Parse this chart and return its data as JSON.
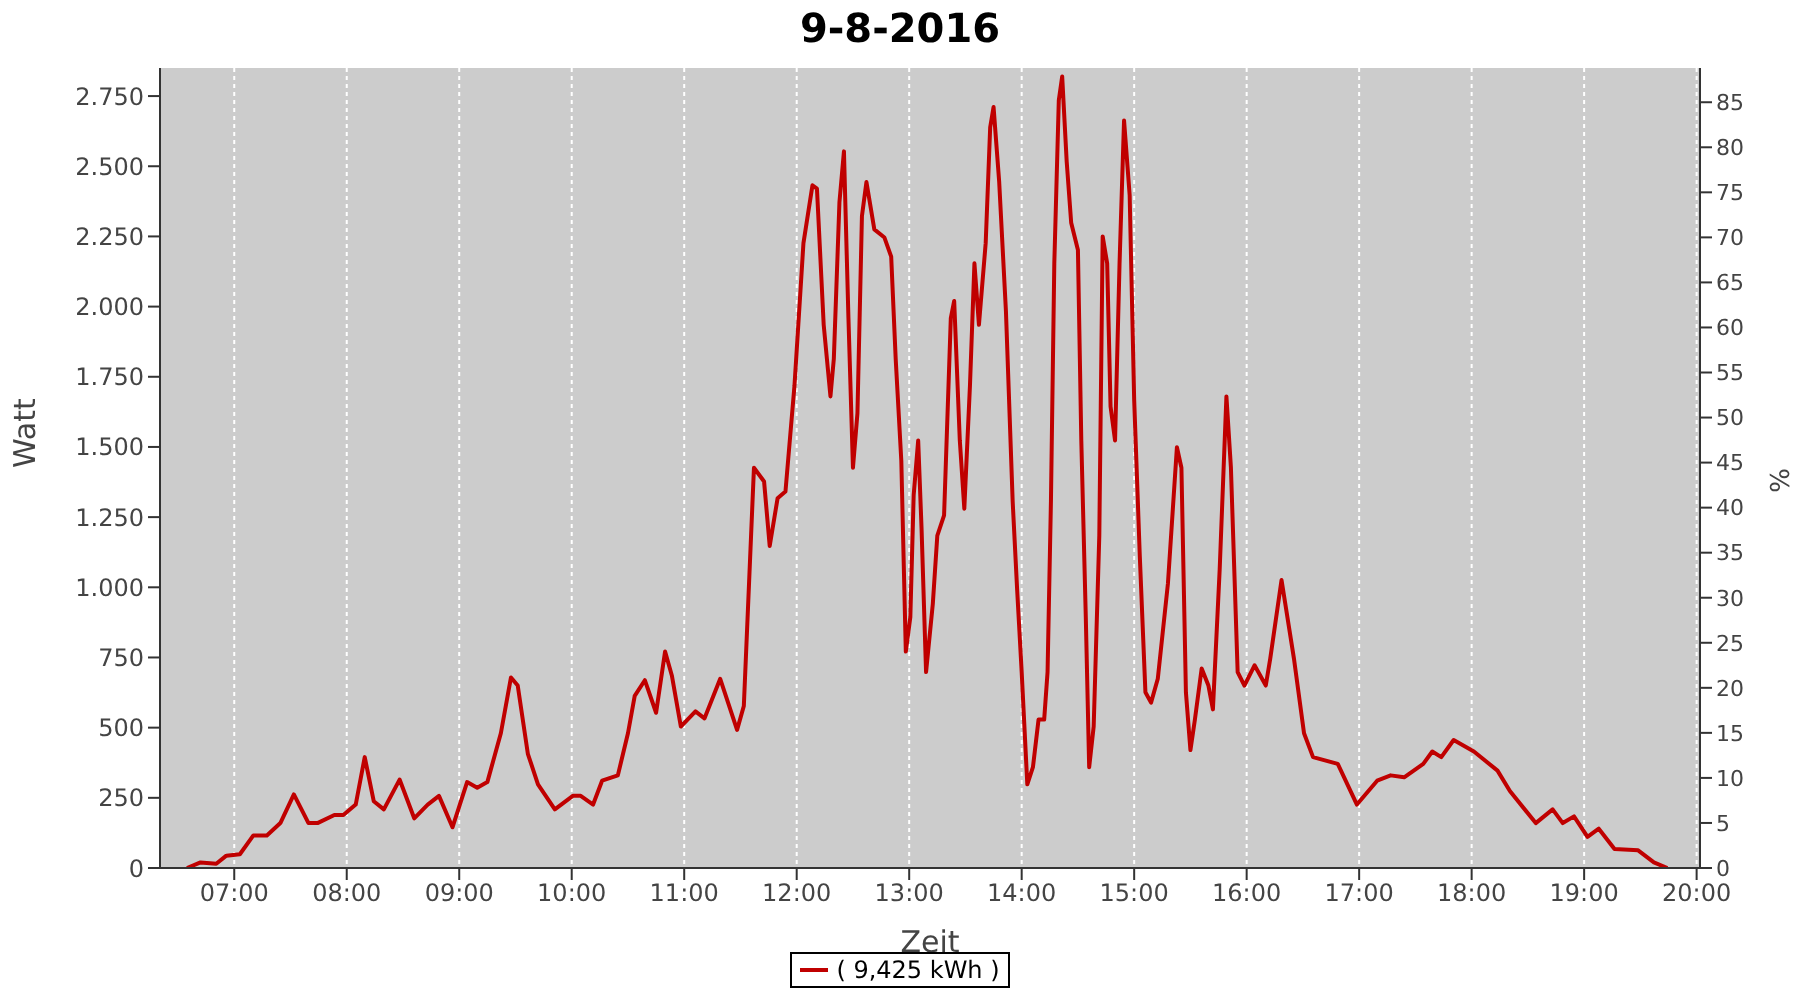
{
  "chart_data": {
    "type": "line",
    "title": "9-8-2016",
    "xlabel": "Zeit",
    "ylabel": "Watt",
    "y2label": "%",
    "x": [
      6.58,
      6.7,
      6.84,
      6.93,
      7.05,
      7.17,
      7.29,
      7.41,
      7.53,
      7.66,
      7.74,
      7.89,
      7.97,
      8.08,
      8.16,
      8.24,
      8.33,
      8.47,
      8.6,
      8.72,
      8.82,
      8.94,
      9.07,
      9.16,
      9.25,
      9.37,
      9.46,
      9.52,
      9.61,
      9.7,
      9.85,
      10.01,
      10.08,
      10.19,
      10.27,
      10.41,
      10.5,
      10.56,
      10.65,
      10.75,
      10.83,
      10.89,
      10.97,
      11.1,
      11.18,
      11.32,
      11.47,
      11.53,
      11.62,
      11.71,
      11.76,
      11.83,
      11.9,
      11.98,
      12.06,
      12.14,
      12.18,
      12.24,
      12.3,
      12.33,
      12.38,
      12.42,
      12.46,
      12.5,
      12.54,
      12.58,
      12.62,
      12.69,
      12.78,
      12.84,
      12.88,
      12.93,
      12.97,
      13.01,
      13.04,
      13.08,
      13.11,
      13.15,
      13.21,
      13.25,
      13.31,
      13.37,
      13.4,
      13.45,
      13.49,
      13.54,
      13.58,
      13.62,
      13.68,
      13.72,
      13.75,
      13.8,
      13.86,
      13.92,
      13.96,
      14.0,
      14.05,
      14.1,
      14.15,
      14.2,
      14.23,
      14.26,
      14.29,
      14.33,
      14.36,
      14.4,
      14.44,
      14.5,
      14.53,
      14.57,
      14.6,
      14.64,
      14.69,
      14.72,
      14.76,
      14.79,
      14.83,
      14.87,
      14.91,
      14.96,
      15.0,
      15.05,
      15.1,
      15.15,
      15.21,
      15.3,
      15.38,
      15.42,
      15.46,
      15.5,
      15.54,
      15.6,
      15.66,
      15.7,
      15.76,
      15.82,
      15.86,
      15.92,
      15.98,
      16.07,
      16.17,
      16.21,
      16.31,
      16.42,
      16.51,
      16.59,
      16.81,
      16.98,
      17.16,
      17.28,
      17.4,
      17.57,
      17.65,
      17.73,
      17.84,
      18.02,
      18.23,
      18.34,
      18.57,
      18.72,
      18.81,
      18.91,
      19.03,
      19.13,
      19.27,
      19.48,
      19.62,
      19.74
    ],
    "series": [
      {
        "name": "( 9,425 kWh )",
        "color": "#c00000",
        "values": [
          0,
          20,
          15,
          44,
          49,
          116,
          116,
          160,
          262,
          160,
          160,
          189,
          189,
          226,
          395,
          238,
          209,
          315,
          177,
          226,
          257,
          145,
          306,
          286,
          306,
          480,
          679,
          650,
          407,
          298,
          209,
          257,
          257,
          226,
          311,
          330,
          480,
          613,
          669,
          553,
          771,
          686,
          504,
          558,
          533,
          674,
          492,
          577,
          1426,
          1377,
          1147,
          1317,
          1341,
          1717,
          2226,
          2432,
          2420,
          1935,
          1680,
          1814,
          2372,
          2553,
          1959,
          1426,
          1620,
          2323,
          2444,
          2275,
          2246,
          2178,
          1814,
          1450,
          771,
          893,
          1329,
          1523,
          1208,
          698,
          941,
          1184,
          1256,
          1959,
          2020,
          1523,
          1280,
          1717,
          2154,
          1935,
          2226,
          2639,
          2711,
          2444,
          1984,
          1305,
          989,
          698,
          298,
          359,
          529,
          529,
          698,
          1305,
          2154,
          2735,
          2820,
          2517,
          2299,
          2202,
          1523,
          893,
          359,
          504,
          1184,
          2250,
          2154,
          1644,
          1523,
          2154,
          2663,
          2396,
          1668,
          1111,
          626,
          589,
          674,
          1013,
          1499,
          1426,
          626,
          420,
          529,
          711,
          650,
          565,
          1062,
          1680,
          1426,
          698,
          650,
          722,
          650,
          747,
          1026,
          747,
          480,
          395,
          371,
          226,
          311,
          330,
          323,
          371,
          415,
          395,
          456,
          415,
          347,
          274,
          160,
          209,
          160,
          184,
          111,
          140,
          68,
          63,
          20,
          0
        ]
      }
    ],
    "xlim": [
      6.34,
      20.03
    ],
    "xticks": [
      {
        "value": 7,
        "label": "07:00"
      },
      {
        "value": 8,
        "label": "08:00"
      },
      {
        "value": 9,
        "label": "09:00"
      },
      {
        "value": 10,
        "label": "10:00"
      },
      {
        "value": 11,
        "label": "11:00"
      },
      {
        "value": 12,
        "label": "12:00"
      },
      {
        "value": 13,
        "label": "13:00"
      },
      {
        "value": 14,
        "label": "14:00"
      },
      {
        "value": 15,
        "label": "15:00"
      },
      {
        "value": 16,
        "label": "16:00"
      },
      {
        "value": 17,
        "label": "17:00"
      },
      {
        "value": 18,
        "label": "18:00"
      },
      {
        "value": 19,
        "label": "19:00"
      },
      {
        "value": 20,
        "label": "20:00"
      }
    ],
    "ylim": [
      0,
      2850
    ],
    "yticks": [
      0,
      250,
      500,
      750,
      {
        "value": 1000,
        "label": "1.000"
      },
      {
        "value": 1250,
        "label": "1.250"
      },
      {
        "value": 1500,
        "label": "1.500"
      },
      {
        "value": 1750,
        "label": "1.750"
      },
      {
        "value": 2000,
        "label": "2.000"
      },
      {
        "value": 2250,
        "label": "2.250"
      },
      {
        "value": 2500,
        "label": "2.500"
      },
      {
        "value": 2750,
        "label": "2.750"
      }
    ],
    "y2lim": [
      0,
      88.8
    ],
    "y2ticks": [
      0,
      5,
      10,
      15,
      20,
      25,
      30,
      35,
      40,
      45,
      50,
      55,
      60,
      65,
      70,
      75,
      80,
      85
    ],
    "grid": true,
    "legend": "bottom"
  }
}
